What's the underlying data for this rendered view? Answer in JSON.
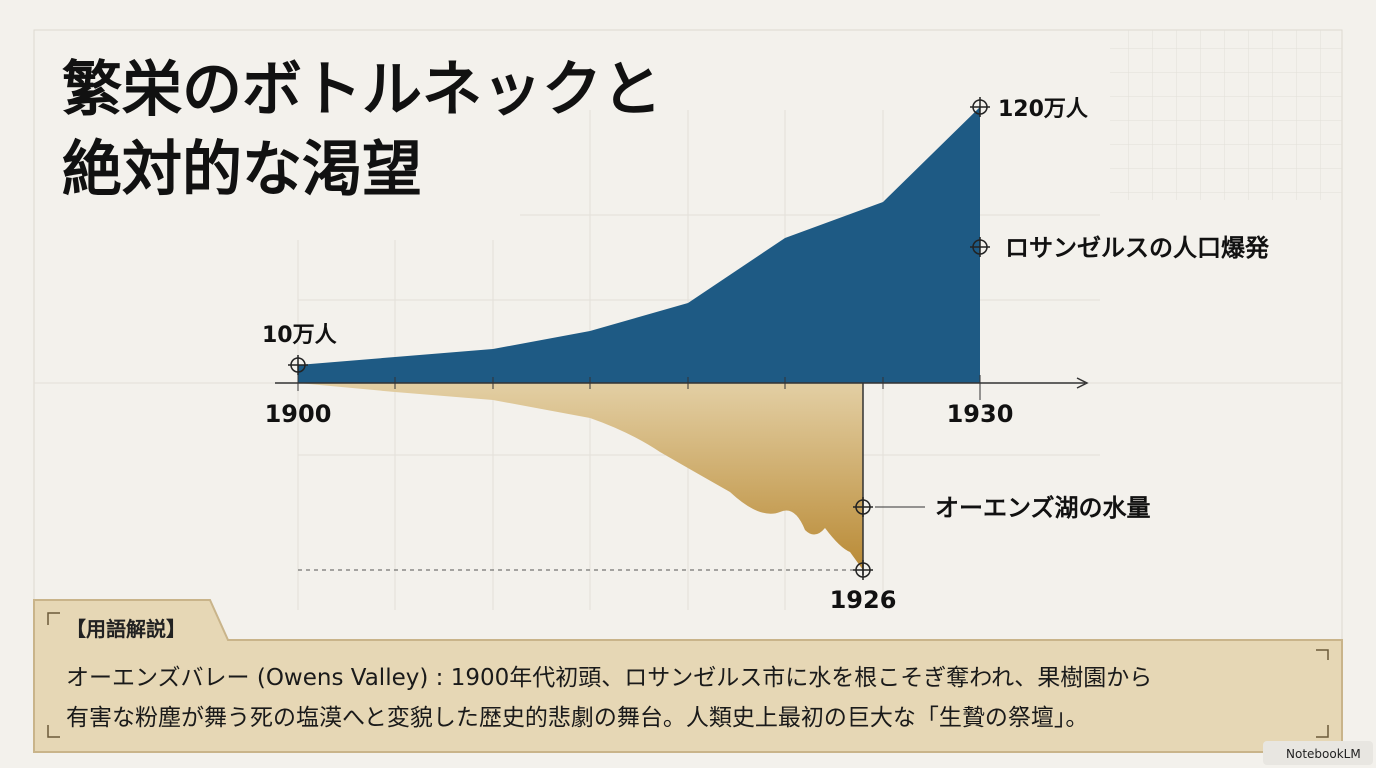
{
  "title": [
    "繁栄のボトルネックと",
    "絶対的な渇望"
  ],
  "chart": {
    "start_population": "10万人",
    "end_population": "120万人",
    "population_label": "ロサンゼルスの人口爆発",
    "lake_label": "オーエンズ湖の水量",
    "year_start": "1900",
    "year_end": "1930",
    "year_dry": "1926"
  },
  "glossary": {
    "heading": "【用語解説】",
    "lines": [
      "オーエンズバレー (Owens Valley) : 1900年代初頭、ロサンゼルス市に水を根こそぎ奪われ、果樹園から",
      "有害な粉塵が舞う死の塩漠へと変貌した歴史的悲劇の舞台。人類史上最初の巨大な「生贄の祭壇」。"
    ]
  },
  "footer": "NotebookLM"
}
